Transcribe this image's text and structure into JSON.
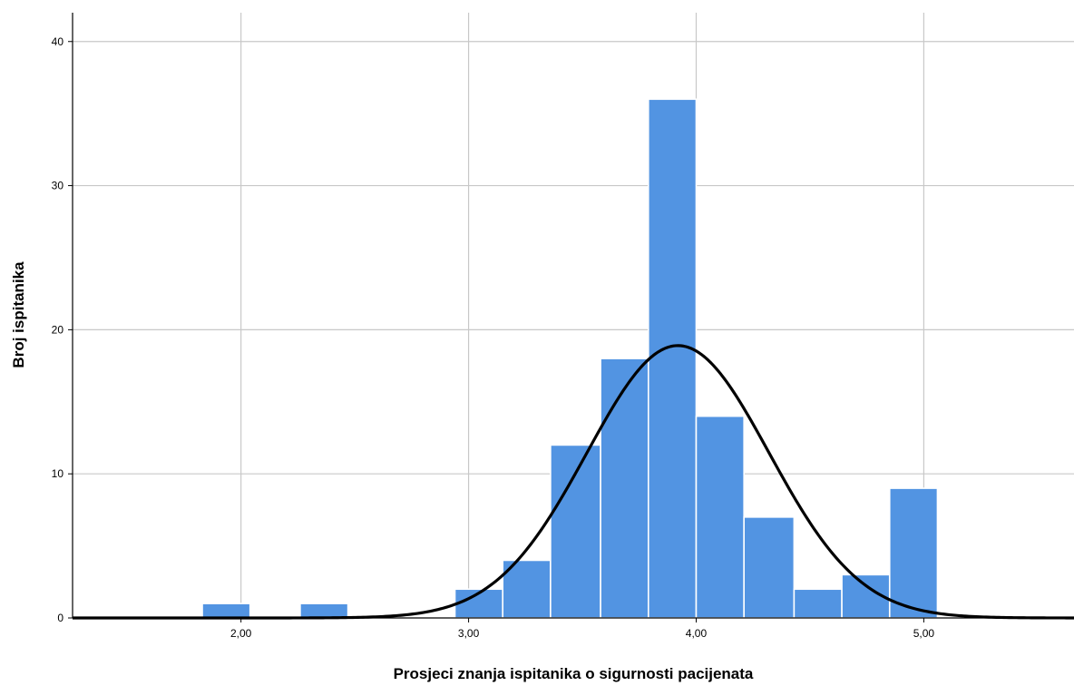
{
  "chart_data": {
    "type": "bar",
    "subtype": "histogram",
    "title": "",
    "xlabel": "Prosjeci znanja ispitanika o sigurnosti pacijenata",
    "ylabel": "Broj ispitanika",
    "xlim": [
      1.26,
      5.66
    ],
    "ylim": [
      0,
      42
    ],
    "x_ticks": [
      2.0,
      3.0,
      4.0,
      5.0
    ],
    "x_tick_labels": [
      "2,00",
      "3,00",
      "4,00",
      "5,00"
    ],
    "y_ticks": [
      0,
      10,
      20,
      30,
      40
    ],
    "y_tick_labels": [
      "0",
      "10",
      "20",
      "30",
      "40"
    ],
    "bin_width": 0.2125,
    "bins": [
      {
        "start": 1.83,
        "end": 2.04,
        "count": 1
      },
      {
        "start": 2.26,
        "end": 2.47,
        "count": 1
      },
      {
        "start": 2.94,
        "end": 3.15,
        "count": 2
      },
      {
        "start": 3.15,
        "end": 3.36,
        "count": 4
      },
      {
        "start": 3.36,
        "end": 3.58,
        "count": 12
      },
      {
        "start": 3.58,
        "end": 3.79,
        "count": 18
      },
      {
        "start": 3.79,
        "end": 4.0,
        "count": 36
      },
      {
        "start": 4.0,
        "end": 4.21,
        "count": 14
      },
      {
        "start": 4.21,
        "end": 4.43,
        "count": 7
      },
      {
        "start": 4.43,
        "end": 4.64,
        "count": 2
      },
      {
        "start": 4.64,
        "end": 4.85,
        "count": 3
      },
      {
        "start": 4.85,
        "end": 5.06,
        "count": 9
      }
    ],
    "normal_curve": {
      "mean": 3.92,
      "std_dev": 0.4,
      "peak": 18.9
    },
    "grid": true,
    "colors": {
      "bar": "#5294e2",
      "bar_edge": "#ffffff",
      "curve": "#000000",
      "grid": "#c8c8c8",
      "axis": "#000000"
    }
  }
}
